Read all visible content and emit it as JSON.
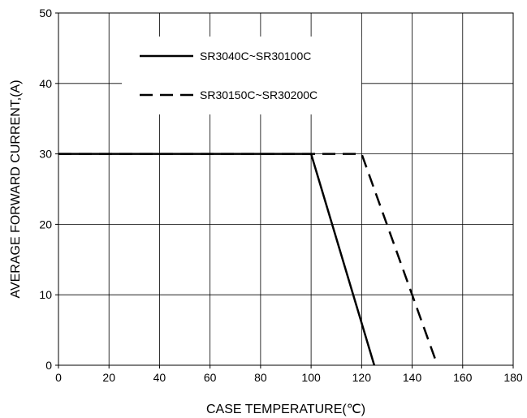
{
  "chart_data": {
    "type": "line",
    "title": "",
    "xlabel": "CASE TEMPERATURE(℃)",
    "ylabel": "AVERAGE FORWARD CURRENT,(A)",
    "xlim": [
      0,
      180
    ],
    "ylim": [
      0,
      50
    ],
    "xticks": [
      0,
      20,
      40,
      60,
      80,
      100,
      120,
      140,
      160,
      180
    ],
    "yticks": [
      0,
      10,
      20,
      30,
      40,
      50
    ],
    "grid": true,
    "legend_position": "top-left inside",
    "series": [
      {
        "name": "SR3040C~SR30100C",
        "line_style": "solid",
        "color": "#000000",
        "x": [
          0,
          100,
          125
        ],
        "y": [
          30,
          30,
          0
        ]
      },
      {
        "name": "SR30150C~SR30200C",
        "line_style": "dashed",
        "color": "#000000",
        "x": [
          0,
          120,
          150
        ],
        "y": [
          30,
          30,
          0
        ]
      }
    ]
  }
}
